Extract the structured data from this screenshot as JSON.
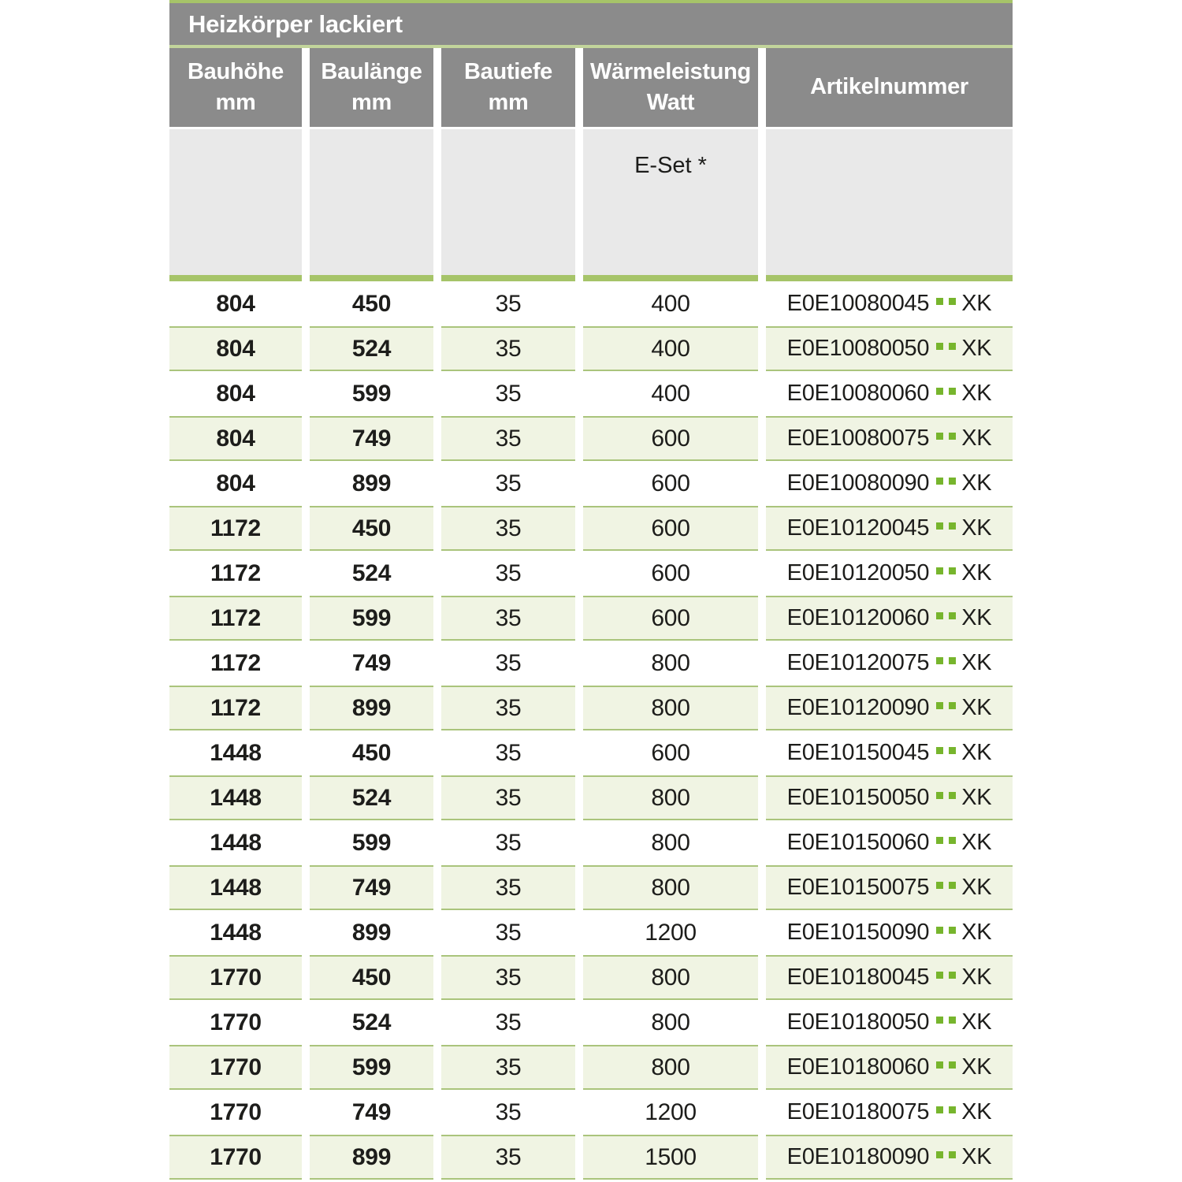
{
  "table": {
    "title": "Heizkörper lackiert",
    "columns": [
      {
        "label": "Bauhöhe",
        "unit": "mm"
      },
      {
        "label": "Baulänge",
        "unit": "mm"
      },
      {
        "label": "Bautiefe",
        "unit": "mm"
      },
      {
        "label": "Wärmeleistung",
        "unit": "Watt"
      },
      {
        "label": "Artikelnummer",
        "unit": ""
      }
    ],
    "subheader_note": "E-Set *",
    "article_suffix": "XK",
    "rows": [
      {
        "bauhoehe": "804",
        "baulaenge": "450",
        "bautiefe": "35",
        "watt": "400",
        "artikelnummer": "E0E10080045"
      },
      {
        "bauhoehe": "804",
        "baulaenge": "524",
        "bautiefe": "35",
        "watt": "400",
        "artikelnummer": "E0E10080050"
      },
      {
        "bauhoehe": "804",
        "baulaenge": "599",
        "bautiefe": "35",
        "watt": "400",
        "artikelnummer": "E0E10080060"
      },
      {
        "bauhoehe": "804",
        "baulaenge": "749",
        "bautiefe": "35",
        "watt": "600",
        "artikelnummer": "E0E10080075"
      },
      {
        "bauhoehe": "804",
        "baulaenge": "899",
        "bautiefe": "35",
        "watt": "600",
        "artikelnummer": "E0E10080090"
      },
      {
        "bauhoehe": "1172",
        "baulaenge": "450",
        "bautiefe": "35",
        "watt": "600",
        "artikelnummer": "E0E10120045"
      },
      {
        "bauhoehe": "1172",
        "baulaenge": "524",
        "bautiefe": "35",
        "watt": "600",
        "artikelnummer": "E0E10120050"
      },
      {
        "bauhoehe": "1172",
        "baulaenge": "599",
        "bautiefe": "35",
        "watt": "600",
        "artikelnummer": "E0E10120060"
      },
      {
        "bauhoehe": "1172",
        "baulaenge": "749",
        "bautiefe": "35",
        "watt": "800",
        "artikelnummer": "E0E10120075"
      },
      {
        "bauhoehe": "1172",
        "baulaenge": "899",
        "bautiefe": "35",
        "watt": "800",
        "artikelnummer": "E0E10120090"
      },
      {
        "bauhoehe": "1448",
        "baulaenge": "450",
        "bautiefe": "35",
        "watt": "600",
        "artikelnummer": "E0E10150045"
      },
      {
        "bauhoehe": "1448",
        "baulaenge": "524",
        "bautiefe": "35",
        "watt": "800",
        "artikelnummer": "E0E10150050"
      },
      {
        "bauhoehe": "1448",
        "baulaenge": "599",
        "bautiefe": "35",
        "watt": "800",
        "artikelnummer": "E0E10150060"
      },
      {
        "bauhoehe": "1448",
        "baulaenge": "749",
        "bautiefe": "35",
        "watt": "800",
        "artikelnummer": "E0E10150075"
      },
      {
        "bauhoehe": "1448",
        "baulaenge": "899",
        "bautiefe": "35",
        "watt": "1200",
        "artikelnummer": "E0E10150090"
      },
      {
        "bauhoehe": "1770",
        "baulaenge": "450",
        "bautiefe": "35",
        "watt": "800",
        "artikelnummer": "E0E10180045"
      },
      {
        "bauhoehe": "1770",
        "baulaenge": "524",
        "bautiefe": "35",
        "watt": "800",
        "artikelnummer": "E0E10180050"
      },
      {
        "bauhoehe": "1770",
        "baulaenge": "599",
        "bautiefe": "35",
        "watt": "800",
        "artikelnummer": "E0E10180060"
      },
      {
        "bauhoehe": "1770",
        "baulaenge": "749",
        "bautiefe": "35",
        "watt": "1200",
        "artikelnummer": "E0E10180075"
      },
      {
        "bauhoehe": "1770",
        "baulaenge": "899",
        "bautiefe": "35",
        "watt": "1500",
        "artikelnummer": "E0E10180090"
      }
    ]
  },
  "colors": {
    "header_gray": "#8b8b8b",
    "subheader_gray": "#e9e9e9",
    "accent_green": "#a6c469",
    "pale_divider_green": "#c2d49b",
    "row_green_bg": "#f0f4e3",
    "row_border_green": "#aac47c",
    "dot_green": "#77b52d",
    "text_dark": "#1d1d1b",
    "header_text": "#ffffff"
  }
}
